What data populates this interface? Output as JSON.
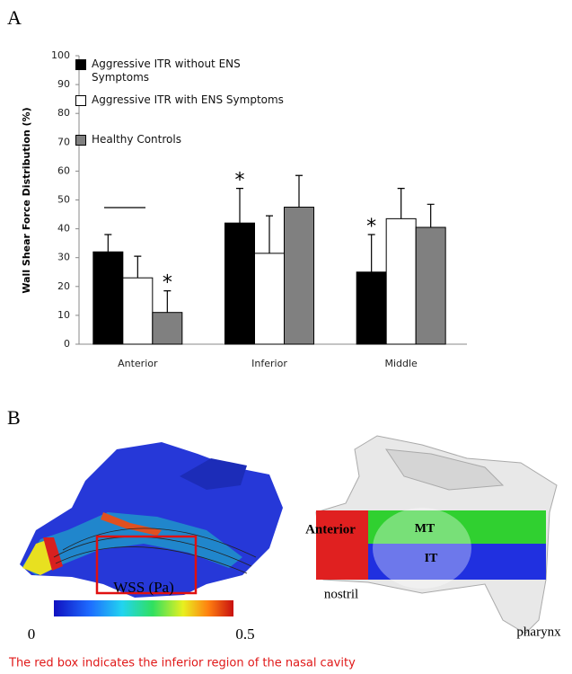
{
  "panel_labels": {
    "a": "A",
    "b": "B"
  },
  "chart_data": {
    "type": "bar",
    "y_label": "Wall Shear Force Distribution (%)",
    "categories": [
      "Anterior",
      "Inferior",
      "Middle"
    ],
    "series": [
      {
        "name": "Aggressive ITR without ENS Symptoms",
        "color": "#000000",
        "values": [
          32,
          42,
          25
        ],
        "errors": [
          6,
          12,
          13
        ],
        "markers": [
          null,
          "*",
          "*"
        ]
      },
      {
        "name": "Aggressive ITR with ENS Symptoms",
        "color": "#ffffff",
        "values": [
          23,
          31.5,
          43.5
        ],
        "errors": [
          7.5,
          13,
          10.5
        ],
        "markers": [
          null,
          null,
          null
        ]
      },
      {
        "name": "Healthy Controls",
        "color": "#808080",
        "values": [
          11,
          47.5,
          40.5
        ],
        "errors": [
          7.5,
          11,
          8
        ],
        "markers": [
          "*",
          null,
          null
        ]
      }
    ],
    "ylim": [
      0,
      100
    ],
    "yticks": [
      0,
      10,
      20,
      30,
      40,
      50,
      60,
      70,
      80,
      90,
      100
    ],
    "grid": false
  },
  "panel_b": {
    "colorbar_title": "WSS (Pa)",
    "colorbar_min": "0",
    "colorbar_max": "0.5",
    "labels": {
      "anterior": "Anterior",
      "mt": "MT",
      "it": "IT",
      "nostril": "nostril",
      "pharynx": "pharynx"
    }
  },
  "caption": "The red box indicates the inferior region of the nasal cavity"
}
